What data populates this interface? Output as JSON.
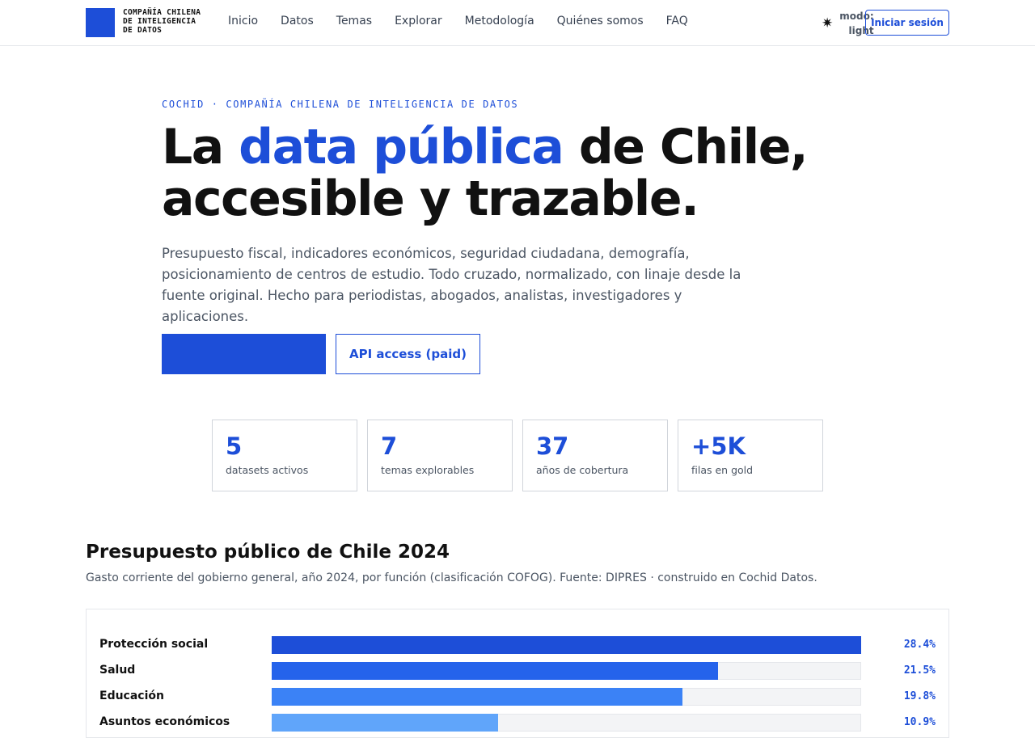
{
  "header": {
    "logo": [
      "COMPAÑÍA CHILENA",
      "DE INTELIGENCIA",
      "DE DATOS"
    ],
    "nav": [
      "Inicio",
      "Datos",
      "Temas",
      "Explorar",
      "Metodología",
      "Quiénes somos",
      "FAQ"
    ],
    "theme": [
      "modo:",
      "light"
    ],
    "login": "Iniciar sesión"
  },
  "hero": {
    "eyebrow": "COCHID · COMPAÑÍA CHILENA DE INTELIGENCIA DE DATOS",
    "title": [
      "La",
      "data pública",
      "de Chile,",
      "accesible y trazable."
    ],
    "lead": "Presupuesto fiscal, indicadores económicos, seguridad ciudadana, demografía, posicionamiento de centros de estudio. Todo cruzado, normalizado, con linaje desde la fuente original. Hecho para periodistas, abogados, analistas, investigadores y aplicaciones.",
    "secondary_button": "API access (paid)"
  },
  "stats": [
    {
      "value": 5,
      "label": "datasets activos"
    },
    {
      "value": 7,
      "label": "temas explorables"
    },
    {
      "value": 37,
      "label": "años de cobertura"
    },
    {
      "value": "+5K",
      "label": "filas en gold"
    }
  ],
  "chart_data": {
    "type": "bar",
    "title": "Presupuesto público de Chile 2024",
    "subtitle": "Gasto corriente del gobierno general, año 2024, por función (clasificación COFOG). Fuente: DIPRES · construido en Cochid Datos.",
    "categories": [
      "Protección social",
      "Salud",
      "Educación",
      "Asuntos económicos"
    ],
    "values": [
      28.4,
      21.5,
      19.8,
      10.9
    ],
    "value_labels": [
      "28.4%",
      "21.5%",
      "19.8%",
      "10.9%"
    ],
    "colors": [
      "#1d4ed8",
      "#2563eb",
      "#3b82f6",
      "#60a5fa"
    ]
  }
}
